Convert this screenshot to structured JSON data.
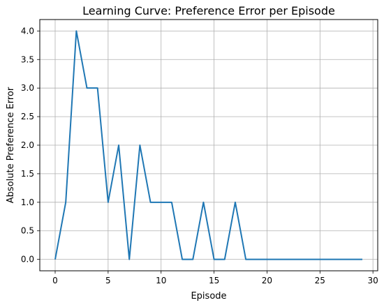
{
  "chart_data": {
    "type": "line",
    "title": "Learning Curve: Preference Error per Episode",
    "xlabel": "Episode",
    "ylabel": "Absolute Preference Error",
    "xlim": [
      -1.45,
      30.45
    ],
    "ylim": [
      -0.2,
      4.2
    ],
    "xticks": [
      0,
      5,
      10,
      15,
      20,
      25,
      30
    ],
    "yticks": [
      0.0,
      0.5,
      1.0,
      1.5,
      2.0,
      2.5,
      3.0,
      3.5,
      4.0
    ],
    "ytick_labels": [
      "0.0",
      "0.5",
      "1.0",
      "1.5",
      "2.0",
      "2.5",
      "3.0",
      "3.5",
      "4.0"
    ],
    "grid": true,
    "series": [
      {
        "color": "#1f77b4",
        "x": [
          0,
          1,
          2,
          3,
          4,
          5,
          6,
          7,
          8,
          9,
          10,
          11,
          12,
          13,
          14,
          15,
          16,
          17,
          18,
          19,
          20,
          21,
          22,
          23,
          24,
          25,
          26,
          27,
          28,
          29
        ],
        "y": [
          0,
          1,
          4,
          3,
          3,
          1,
          2,
          0,
          2,
          1,
          1,
          1,
          0,
          0,
          1,
          0,
          0,
          1,
          0,
          0,
          0,
          0,
          0,
          0,
          0,
          0,
          0,
          0,
          0,
          0
        ]
      }
    ]
  }
}
